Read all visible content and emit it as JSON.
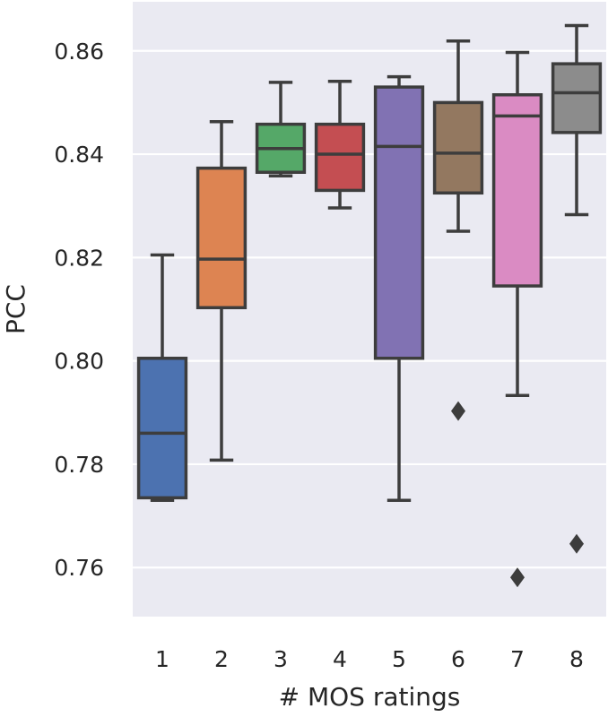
{
  "chart_data": {
    "type": "box",
    "title": "",
    "xlabel": "# MOS ratings",
    "ylabel": "PCC",
    "ylim": [
      0.7505,
      0.8695
    ],
    "grid": true,
    "yticks": [
      "0.76",
      "0.78",
      "0.80",
      "0.82",
      "0.84",
      "0.86"
    ],
    "categories": [
      "1",
      "2",
      "3",
      "4",
      "5",
      "6",
      "7",
      "8"
    ],
    "boxes": [
      {
        "category": "1",
        "q1": 0.7735,
        "median": 0.786,
        "q3": 0.8005,
        "whisker_low": 0.773,
        "whisker_high": 0.8205,
        "outliers": []
      },
      {
        "category": "2",
        "q1": 0.8103,
        "median": 0.8197,
        "q3": 0.8373,
        "whisker_low": 0.7808,
        "whisker_high": 0.8463,
        "outliers": []
      },
      {
        "category": "3",
        "q1": 0.8365,
        "median": 0.8411,
        "q3": 0.8458,
        "whisker_low": 0.8358,
        "whisker_high": 0.8539,
        "outliers": []
      },
      {
        "category": "4",
        "q1": 0.833,
        "median": 0.84,
        "q3": 0.8458,
        "whisker_low": 0.8296,
        "whisker_high": 0.8541,
        "outliers": []
      },
      {
        "category": "5",
        "q1": 0.8005,
        "median": 0.8415,
        "q3": 0.853,
        "whisker_low": 0.773,
        "whisker_high": 0.855,
        "outliers": []
      },
      {
        "category": "6",
        "q1": 0.8325,
        "median": 0.8402,
        "q3": 0.85,
        "whisker_low": 0.8251,
        "whisker_high": 0.8619,
        "outliers": [
          0.7903
        ]
      },
      {
        "category": "7",
        "q1": 0.8145,
        "median": 0.8474,
        "q3": 0.8515,
        "whisker_low": 0.7933,
        "whisker_high": 0.8597,
        "outliers": [
          0.7581
        ]
      },
      {
        "category": "8",
        "q1": 0.8442,
        "median": 0.8519,
        "q3": 0.8575,
        "whisker_low": 0.8283,
        "whisker_high": 0.8649,
        "outliers": [
          0.7646
        ]
      }
    ],
    "colors": [
      "#4c72b0",
      "#dd8452",
      "#55a868",
      "#c44e52",
      "#8172b3",
      "#937860",
      "#da8bc3",
      "#8c8c8c"
    ],
    "style": {
      "background": "#eaeaf2",
      "grid_color": "#ffffff",
      "line_color": "#3d3d3d"
    }
  }
}
